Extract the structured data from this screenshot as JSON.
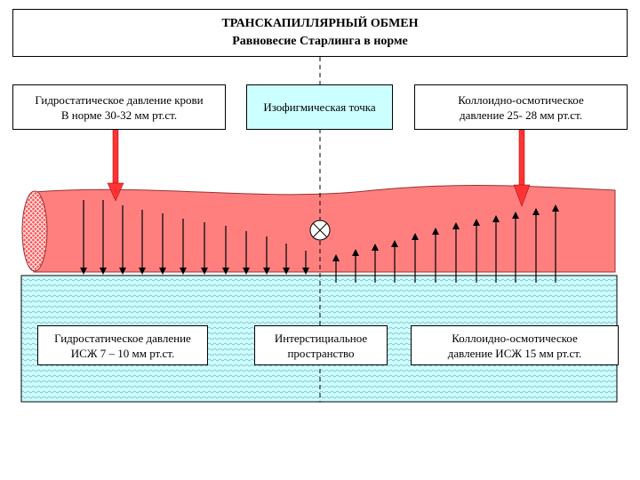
{
  "title": {
    "line1": "ТРАНСКАПИЛЛЯРНЫЙ ОБМЕН",
    "line2": "Равновесие Старлинга в норме"
  },
  "labels": {
    "hydrostatic_blood": {
      "line1": "Гидростатическое давление крови",
      "line2": "В норме  30-32 мм рт.ст."
    },
    "isosphygmic_point": {
      "line1": "Изофигмическая точка"
    },
    "colloid_osmotic_blood": {
      "line1": "Коллоидно-осмотическое",
      "line2": "давление  25- 28 мм рт.ст."
    },
    "hydrostatic_isf": {
      "line1": "Гидростатическое давление",
      "line2": "ИСЖ 7 – 10 мм рт.ст."
    },
    "interstitial_space": {
      "line1": "Интерстициальное",
      "line2": "пространство"
    },
    "colloid_osmotic_isf": {
      "line1": "Коллоидно-осмотическое",
      "line2": "давление ИСЖ 15 мм рт.ст."
    }
  },
  "colors": {
    "capillary": "#ff7f7f",
    "capillary_outline": "#993333",
    "interstitial": "#ccffff",
    "pressure_arrow": "#ff3333",
    "isosphygmic_box": "#ccffff"
  }
}
